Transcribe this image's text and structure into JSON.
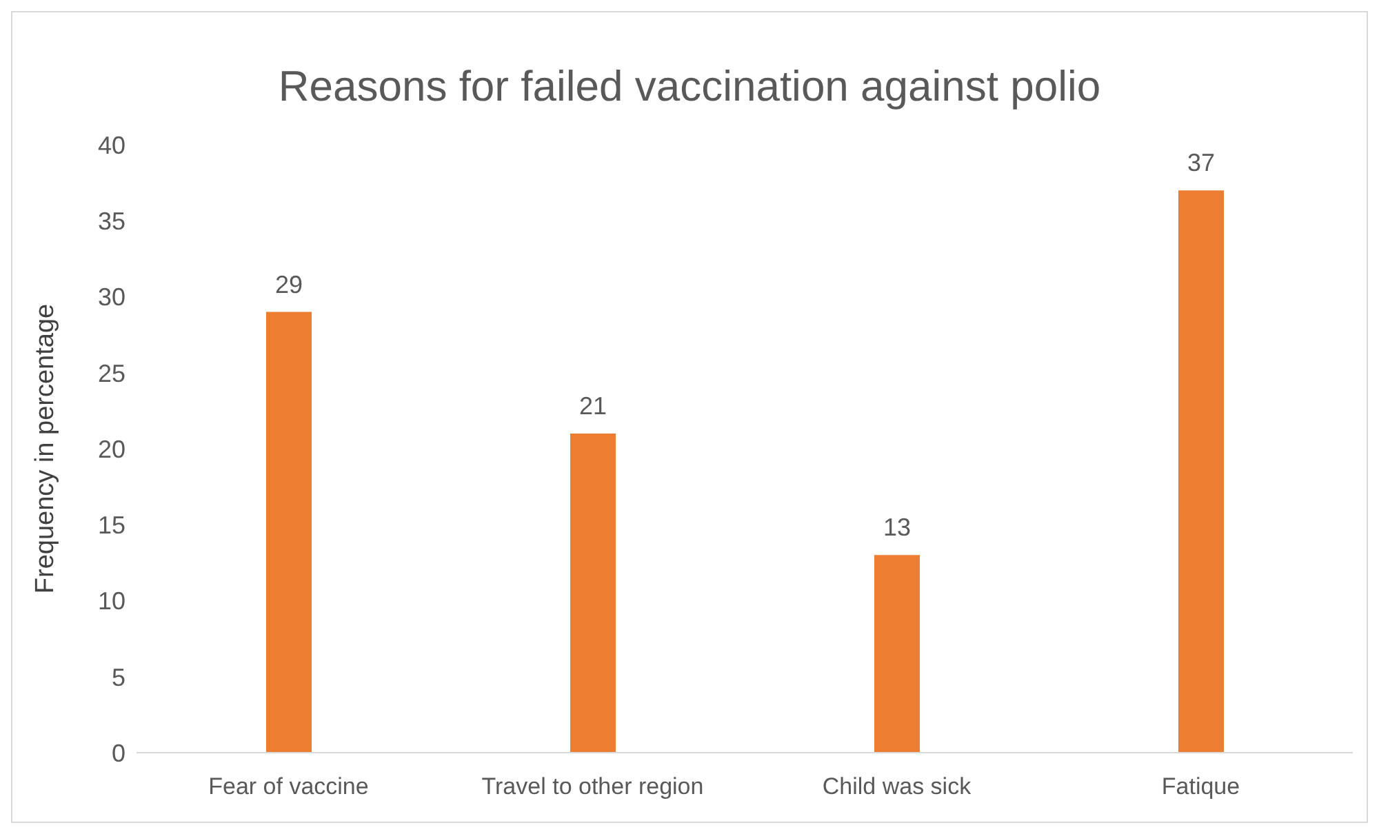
{
  "chart_data": {
    "type": "bar",
    "title": "Reasons for failed vaccination against polio",
    "ylabel": "Frequency in percentage",
    "categories": [
      "Fear of vaccine",
      "Travel to other region",
      "Child was sick",
      "Fatique"
    ],
    "values": [
      29,
      21,
      13,
      37
    ],
    "color": "#ed7d31",
    "ylim": [
      0,
      40
    ],
    "yticks": [
      0,
      5,
      10,
      15,
      20,
      25,
      30,
      35,
      40
    ],
    "grid": false,
    "data_labels": true
  }
}
